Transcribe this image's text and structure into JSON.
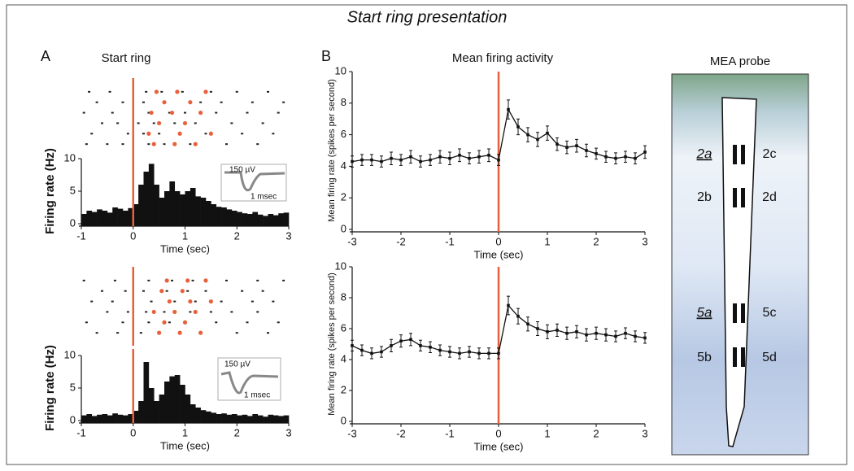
{
  "title": "Start ring presentation",
  "panels": [
    "A",
    "B"
  ],
  "probe": {
    "title": "MEA probe",
    "labels": [
      "2a",
      "2c",
      "2b",
      "2d",
      "5a",
      "5c",
      "5b",
      "5d"
    ]
  },
  "chart_data": [
    {
      "type": "scatter",
      "title": "Start ring",
      "xlim": [
        -1,
        3
      ],
      "ylim": [
        0,
        7
      ],
      "vline": 0,
      "vline_color": "#e8603c",
      "series": [
        {
          "color": "#222222",
          "x": [
            -0.9,
            -0.5,
            -0.2,
            0.3,
            0.6,
            1.1,
            1.8,
            2.4,
            -0.8,
            -0.1,
            0.2,
            0.5,
            0.9,
            1.4,
            2.1,
            2.7,
            -0.6,
            -0.3,
            0.1,
            0.4,
            0.8,
            1.2,
            1.9,
            2.5,
            -0.95,
            -0.4,
            0.3,
            0.7,
            1.0,
            1.6,
            2.2,
            2.8,
            -0.7,
            -0.2,
            0.2,
            0.6,
            1.3,
            1.7,
            2.3,
            2.9,
            -0.85,
            -0.45,
            0.25,
            0.55,
            0.95,
            1.5,
            2.0,
            2.6
          ],
          "y": [
            1,
            1,
            1,
            1,
            1,
            1,
            1,
            1,
            2,
            2,
            2,
            2,
            2,
            2,
            2,
            2,
            3,
            3,
            3,
            3,
            3,
            3,
            3,
            3,
            4,
            4,
            4,
            4,
            4,
            4,
            4,
            4,
            5,
            5,
            5,
            5,
            5,
            5,
            5,
            5,
            6,
            6,
            6,
            6,
            6,
            6,
            6,
            6
          ]
        },
        {
          "color": "#e8603c",
          "x": [
            0.4,
            0.8,
            1.2,
            0.3,
            0.9,
            1.5,
            0.5,
            1.0,
            0.35,
            0.75,
            1.3,
            0.6,
            1.1,
            0.45,
            0.85,
            1.4
          ],
          "y": [
            1,
            1,
            1,
            2,
            2,
            2,
            3,
            3,
            4,
            4,
            4,
            5,
            5,
            6,
            6,
            6
          ]
        }
      ]
    },
    {
      "type": "histogram",
      "xlabel": "Time (sec)",
      "ylabel": "Firing rate (Hz)",
      "xlim": [
        -1,
        3
      ],
      "ylim": [
        0,
        10
      ],
      "xticks": [
        -1,
        0,
        1,
        2,
        3
      ],
      "yticks": [
        0,
        5,
        10
      ],
      "color": "#111111",
      "vline": 0,
      "vline_color": "#e8603c",
      "annotations": [
        "150 µV",
        "1 msec"
      ],
      "bins": [
        -1,
        -0.9,
        -0.8,
        -0.7,
        -0.6,
        -0.5,
        -0.4,
        -0.3,
        -0.2,
        -0.1,
        0,
        0.1,
        0.2,
        0.3,
        0.4,
        0.5,
        0.6,
        0.7,
        0.8,
        0.9,
        1,
        1.1,
        1.2,
        1.3,
        1.4,
        1.5,
        1.6,
        1.7,
        1.8,
        1.9,
        2,
        2.1,
        2.2,
        2.3,
        2.4,
        2.5,
        2.6,
        2.7,
        2.8,
        2.9,
        3
      ],
      "values": [
        1.5,
        2,
        1.8,
        2.2,
        2,
        1.7,
        2.5,
        2.3,
        2,
        2.4,
        3,
        6,
        8,
        9.2,
        6,
        4,
        5,
        6.5,
        5,
        4.5,
        5,
        5.5,
        4.2,
        4,
        3.5,
        3,
        2.6,
        2.5,
        2.2,
        2,
        1.8,
        1.6,
        1.5,
        1.8,
        1.4,
        1.2,
        1.5,
        1.3,
        1.6,
        1.7
      ]
    },
    {
      "type": "scatter",
      "xlim": [
        -1,
        3
      ],
      "ylim": [
        0,
        7
      ],
      "vline": 0,
      "vline_color": "#e8603c",
      "series": [
        {
          "color": "#222222",
          "x": [
            -0.7,
            -0.3,
            0.15,
            0.5,
            0.9,
            1.3,
            2.0,
            2.6,
            -0.9,
            -0.2,
            0.3,
            0.7,
            1.0,
            1.6,
            2.2,
            2.8,
            -0.5,
            -0.1,
            0.25,
            0.6,
            1.1,
            1.5,
            1.9,
            2.4,
            -0.8,
            -0.4,
            0.35,
            0.8,
            1.2,
            1.7,
            2.3,
            2.7,
            -0.6,
            -0.15,
            0.2,
            0.65,
            1.05,
            1.4,
            2.1,
            2.5,
            -0.95,
            -0.35,
            0.3,
            0.75,
            1.15,
            1.8,
            2.4,
            2.9
          ],
          "y": [
            1,
            1,
            1,
            1,
            1,
            1,
            1,
            1,
            2,
            2,
            2,
            2,
            2,
            2,
            2,
            2,
            3,
            3,
            3,
            3,
            3,
            3,
            3,
            3,
            4,
            4,
            4,
            4,
            4,
            4,
            4,
            4,
            5,
            5,
            5,
            5,
            5,
            5,
            5,
            5,
            6,
            6,
            6,
            6,
            6,
            6,
            6,
            6
          ]
        },
        {
          "color": "#e8603c",
          "x": [
            0.5,
            0.9,
            1.3,
            0.6,
            1.0,
            0.4,
            0.8,
            1.2,
            0.7,
            1.1,
            1.5,
            0.55,
            0.95,
            0.65,
            1.05,
            1.4
          ],
          "y": [
            1,
            1,
            1,
            2,
            2,
            3,
            3,
            3,
            4,
            4,
            4,
            5,
            5,
            6,
            6,
            6
          ]
        }
      ]
    },
    {
      "type": "histogram",
      "xlabel": "Time (sec)",
      "ylabel": "Firing rate (Hz)",
      "xlim": [
        -1,
        3
      ],
      "ylim": [
        0,
        10
      ],
      "xticks": [
        -1,
        0,
        1,
        2,
        3
      ],
      "yticks": [
        0,
        5,
        10
      ],
      "color": "#111111",
      "vline": 0,
      "vline_color": "#e8603c",
      "annotations": [
        "150 µV",
        "1 msec"
      ],
      "bins": [
        -1,
        -0.9,
        -0.8,
        -0.7,
        -0.6,
        -0.5,
        -0.4,
        -0.3,
        -0.2,
        -0.1,
        0,
        0.1,
        0.2,
        0.3,
        0.4,
        0.5,
        0.6,
        0.7,
        0.8,
        0.9,
        1,
        1.1,
        1.2,
        1.3,
        1.4,
        1.5,
        1.6,
        1.7,
        1.8,
        1.9,
        2,
        2.1,
        2.2,
        2.3,
        2.4,
        2.5,
        2.6,
        2.7,
        2.8,
        2.9,
        3
      ],
      "values": [
        0.8,
        1,
        0.7,
        0.9,
        1,
        0.8,
        1.1,
        0.9,
        0.8,
        1,
        1.5,
        3,
        9,
        5,
        3,
        4,
        6,
        6.8,
        7,
        5.5,
        4,
        2.5,
        2,
        1.6,
        1.4,
        1.2,
        1,
        1.1,
        0.9,
        1,
        0.8,
        0.9,
        0.7,
        1,
        0.8,
        0.6,
        0.9,
        0.8,
        0.7,
        0.8
      ]
    },
    {
      "type": "line",
      "title": "Mean firing activity",
      "xlabel": "Time (sec)",
      "ylabel": "Mean firing rate (spikes per second)",
      "xlim": [
        -3,
        3
      ],
      "ylim": [
        0,
        10
      ],
      "xticks": [
        -3,
        -2,
        -1,
        0,
        1,
        2,
        3
      ],
      "yticks": [
        0,
        2,
        4,
        6,
        8,
        10
      ],
      "color": "#111111",
      "vline": 0,
      "vline_color": "#e8603c",
      "x": [
        -3,
        -2.8,
        -2.6,
        -2.4,
        -2.2,
        -2,
        -1.8,
        -1.6,
        -1.4,
        -1.2,
        -1,
        -0.8,
        -0.6,
        -0.4,
        -0.2,
        0,
        0.2,
        0.4,
        0.6,
        0.8,
        1,
        1.2,
        1.4,
        1.6,
        1.8,
        2,
        2.2,
        2.4,
        2.6,
        2.8,
        3
      ],
      "values": [
        4.3,
        4.4,
        4.4,
        4.3,
        4.5,
        4.4,
        4.6,
        4.3,
        4.4,
        4.6,
        4.5,
        4.7,
        4.5,
        4.6,
        4.7,
        4.4,
        7.6,
        6.5,
        6.0,
        5.7,
        6.1,
        5.4,
        5.2,
        5.3,
        5.0,
        4.8,
        4.6,
        4.5,
        4.6,
        4.5,
        4.9
      ],
      "errors": [
        0.35,
        0.35,
        0.35,
        0.35,
        0.4,
        0.35,
        0.4,
        0.35,
        0.35,
        0.4,
        0.4,
        0.4,
        0.35,
        0.4,
        0.4,
        0.35,
        0.6,
        0.5,
        0.45,
        0.45,
        0.45,
        0.4,
        0.4,
        0.4,
        0.4,
        0.35,
        0.35,
        0.35,
        0.35,
        0.35,
        0.4
      ]
    },
    {
      "type": "line",
      "xlabel": "Time (sec)",
      "ylabel": "Mean firing rate (spikes per second)",
      "xlim": [
        -3,
        3
      ],
      "ylim": [
        0,
        10
      ],
      "xticks": [
        -3,
        -2,
        -1,
        0,
        1,
        2,
        3
      ],
      "yticks": [
        0,
        2,
        4,
        6,
        8,
        10
      ],
      "color": "#111111",
      "vline": 0,
      "vline_color": "#e8603c",
      "x": [
        -3,
        -2.8,
        -2.6,
        -2.4,
        -2.2,
        -2,
        -1.8,
        -1.6,
        -1.4,
        -1.2,
        -1,
        -0.8,
        -0.6,
        -0.4,
        -0.2,
        0,
        0.2,
        0.4,
        0.6,
        0.8,
        1,
        1.2,
        1.4,
        1.6,
        1.8,
        2,
        2.2,
        2.4,
        2.6,
        2.8,
        3
      ],
      "values": [
        4.9,
        4.6,
        4.4,
        4.5,
        4.9,
        5.2,
        5.3,
        4.9,
        4.8,
        4.6,
        4.5,
        4.4,
        4.5,
        4.4,
        4.4,
        4.4,
        7.5,
        6.8,
        6.3,
        6.0,
        5.8,
        5.9,
        5.7,
        5.8,
        5.6,
        5.7,
        5.6,
        5.5,
        5.7,
        5.5,
        5.4
      ],
      "errors": [
        0.35,
        0.35,
        0.35,
        0.35,
        0.4,
        0.4,
        0.4,
        0.35,
        0.35,
        0.35,
        0.35,
        0.35,
        0.35,
        0.35,
        0.35,
        0.35,
        0.6,
        0.5,
        0.45,
        0.45,
        0.45,
        0.4,
        0.4,
        0.4,
        0.4,
        0.4,
        0.4,
        0.35,
        0.35,
        0.35,
        0.35
      ]
    }
  ]
}
